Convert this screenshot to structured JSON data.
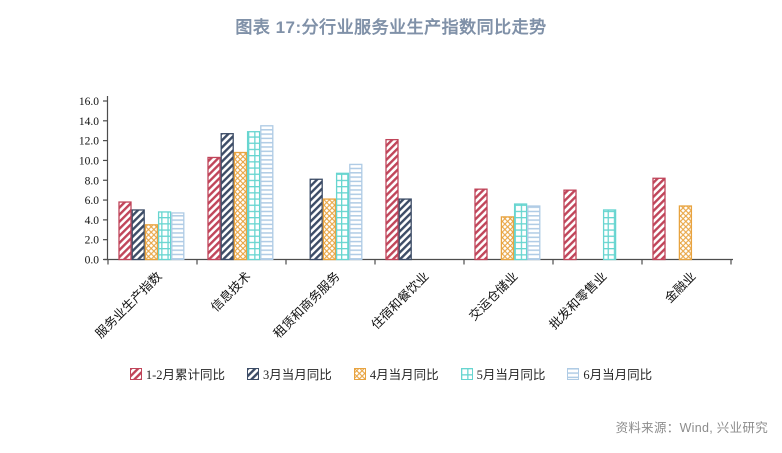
{
  "chart_data": {
    "type": "bar",
    "title": "图表 17:分行业服务业生产指数同比走势",
    "xlabel": "",
    "ylabel": "",
    "categories": [
      "服务业生产指数",
      "信息技术",
      "租赁和商务服务",
      "住宿和餐饮业",
      "交运仓储业",
      "批发和零售业",
      "金融业"
    ],
    "series": [
      {
        "name": "1-2月累计同比",
        "color": "#C0455A",
        "pattern": "diagonal",
        "values": [
          5.8,
          10.3,
          null,
          12.1,
          7.1,
          7.0,
          8.2
        ]
      },
      {
        "name": "3月当月同比",
        "color": "#3C4C66",
        "pattern": "diagonal",
        "values": [
          5.0,
          12.7,
          8.1,
          6.1,
          null,
          null,
          null
        ]
      },
      {
        "name": "4月当月同比",
        "color": "#E8A33F",
        "pattern": "crosshatch",
        "values": [
          3.5,
          10.8,
          6.1,
          null,
          4.3,
          null,
          5.4
        ]
      },
      {
        "name": "5月当月同比",
        "color": "#67D5D0",
        "pattern": "grid",
        "values": [
          4.8,
          12.9,
          8.7,
          null,
          5.6,
          5.0,
          null
        ]
      },
      {
        "name": "6月当月同比",
        "color": "#AFCBE5",
        "pattern": "hlines",
        "values": [
          4.7,
          13.5,
          9.6,
          null,
          5.4,
          null,
          null
        ]
      }
    ],
    "ylim": [
      0,
      16
    ],
    "y_tick_step": 2,
    "y_tick_decimals": 1,
    "x_label_rotation": -45,
    "legend_position": "bottom",
    "grid": false
  },
  "source_note": "资料来源：Wind, 兴业研究",
  "colors": {
    "title": "#8091A8",
    "axis": "#4D4D4D",
    "axis_text": "#111111",
    "legend_text": "#262626",
    "source_text": "#8C8C8C",
    "background": "#FFFFFF"
  }
}
